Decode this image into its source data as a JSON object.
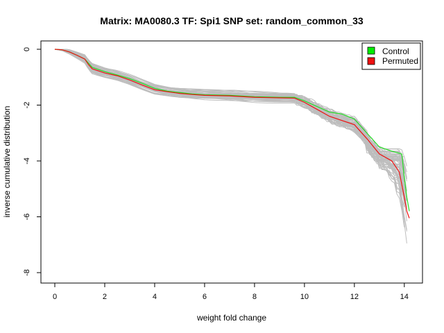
{
  "chart_data": {
    "type": "line",
    "title": "Matrix: MA0080.3 TF: Spi1 SNP set: random_common_33",
    "xlabel": "weight fold change",
    "ylabel": "inverse cumulative distribution",
    "xlim": [
      0,
      14.2
    ],
    "ylim": [
      -8,
      0
    ],
    "x_ticks": [
      "0",
      "2",
      "4",
      "6",
      "8",
      "10",
      "12",
      "14"
    ],
    "y_ticks": [
      "0",
      "-2",
      "-4",
      "-6",
      "-8"
    ],
    "legend": {
      "position": "top-right",
      "entries": [
        {
          "label": "Control",
          "color": "#00ee00"
        },
        {
          "label": "Permuted",
          "color": "#ee1111"
        }
      ]
    },
    "background_series_color": "#bdbdbd",
    "series": [
      {
        "name": "Control",
        "color": "#22dd22",
        "points": [
          [
            0,
            0
          ],
          [
            0.3,
            -0.02
          ],
          [
            0.6,
            -0.1
          ],
          [
            0.9,
            -0.22
          ],
          [
            1.2,
            -0.35
          ],
          [
            1.35,
            -0.5
          ],
          [
            1.5,
            -0.65
          ],
          [
            2,
            -0.8
          ],
          [
            2.5,
            -0.92
          ],
          [
            3,
            -1.05
          ],
          [
            3.5,
            -1.22
          ],
          [
            4,
            -1.4
          ],
          [
            4.5,
            -1.5
          ],
          [
            5,
            -1.55
          ],
          [
            5.5,
            -1.6
          ],
          [
            6,
            -1.63
          ],
          [
            7,
            -1.65
          ],
          [
            8,
            -1.7
          ],
          [
            9,
            -1.72
          ],
          [
            9.6,
            -1.72
          ],
          [
            10,
            -1.85
          ],
          [
            10.5,
            -2.05
          ],
          [
            11,
            -2.25
          ],
          [
            11.5,
            -2.32
          ],
          [
            12,
            -2.5
          ],
          [
            12.5,
            -3.0
          ],
          [
            13,
            -3.5
          ],
          [
            13.5,
            -3.65
          ],
          [
            13.9,
            -3.75
          ],
          [
            14.0,
            -4.6
          ],
          [
            14.1,
            -5.3
          ],
          [
            14.2,
            -5.8
          ]
        ]
      },
      {
        "name": "Permuted",
        "color": "#ee1111",
        "points": [
          [
            0,
            0
          ],
          [
            0.3,
            -0.02
          ],
          [
            0.6,
            -0.1
          ],
          [
            0.9,
            -0.22
          ],
          [
            1.2,
            -0.35
          ],
          [
            1.35,
            -0.55
          ],
          [
            1.5,
            -0.7
          ],
          [
            2,
            -0.85
          ],
          [
            2.5,
            -0.95
          ],
          [
            3,
            -1.1
          ],
          [
            3.5,
            -1.28
          ],
          [
            4,
            -1.45
          ],
          [
            4.5,
            -1.52
          ],
          [
            5,
            -1.58
          ],
          [
            5.5,
            -1.62
          ],
          [
            6,
            -1.65
          ],
          [
            7,
            -1.67
          ],
          [
            8,
            -1.72
          ],
          [
            9,
            -1.74
          ],
          [
            9.6,
            -1.75
          ],
          [
            10,
            -1.9
          ],
          [
            10.5,
            -2.15
          ],
          [
            11,
            -2.4
          ],
          [
            11.5,
            -2.55
          ],
          [
            12,
            -2.7
          ],
          [
            12.5,
            -3.2
          ],
          [
            13,
            -3.75
          ],
          [
            13.5,
            -4.0
          ],
          [
            13.8,
            -4.4
          ],
          [
            14.0,
            -5.3
          ],
          [
            14.1,
            -5.8
          ],
          [
            14.2,
            -6.05
          ]
        ]
      }
    ]
  }
}
